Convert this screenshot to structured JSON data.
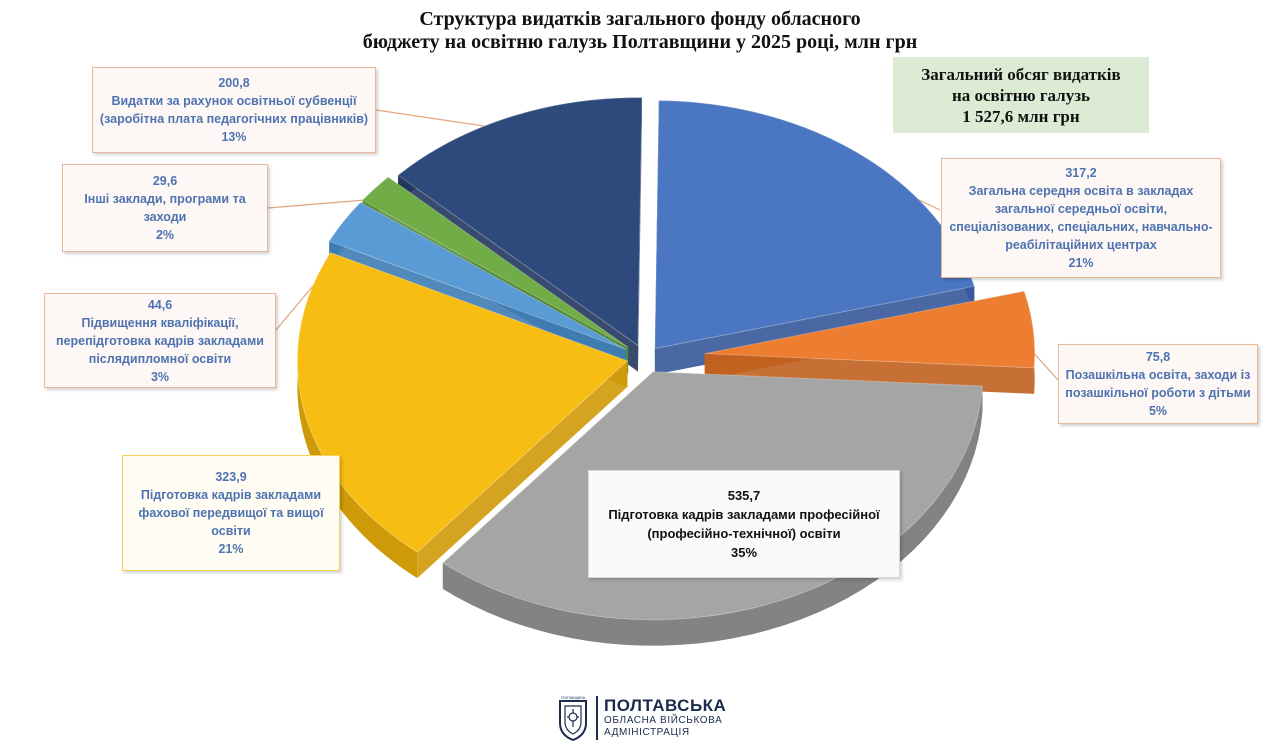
{
  "title_line1": "Структура видатків загального фонду обласного",
  "title_line2": "бюджету на освітню галузь Полтавщини у 2025 році, млн грн",
  "total": {
    "line1": "Загальний обсяг видатків",
    "line2": "на освітню галузь",
    "line3": "1 527,6 млн грн"
  },
  "logo": {
    "line1": "ПОЛТАВСЬКА",
    "line2": "ОБЛАСНА ВІЙСЬКОВА",
    "line3": "АДМІНІСТРАЦІЯ",
    "emblem_text": "ПОЛТАВЩИНА"
  },
  "chart_data": {
    "type": "pie",
    "title": "Структура видатків загального фонду обласного бюджету на освітню галузь Полтавщини у 2025 році, млн грн",
    "unit": "млн грн",
    "total": 1527.6,
    "slices": [
      {
        "value": "317,2",
        "percent": "21%",
        "label_lines": [
          "Загальна середня освіта в закладах",
          "загальної середньої освіти,",
          "спеціалізованих, спеціальних, навчально-",
          "реабілітаційних центрах"
        ],
        "color": "#4a76c2",
        "side": "#36599a"
      },
      {
        "value": "75,8",
        "percent": "5%",
        "label_lines": [
          "Позашкільна освіта, заходи із",
          "позашкільної роботи з дітьми"
        ],
        "color": "#ed7d31",
        "side": "#c1601f"
      },
      {
        "value": "535,7",
        "percent": "35%",
        "label_lines": [
          "Підготовка кадрів закладами професійної",
          "(професійно-технічної) освіти"
        ],
        "color": "#a5a5a5",
        "side": "#838383"
      },
      {
        "value": "323,9",
        "percent": "21%",
        "label_lines": [
          "Підготовка кадрів закладами",
          "фахової передвищої та вищої",
          "освіти"
        ],
        "color": "#f7bd12",
        "side": "#cf9a08"
      },
      {
        "value": "44,6",
        "percent": "3%",
        "label_lines": [
          "Підвищення кваліфікації,",
          "перепідготовка кадрів закладами",
          "післядипломної освіти"
        ],
        "color": "#5b9bd5",
        "side": "#3f7cb4"
      },
      {
        "value": "29,6",
        "percent": "2%",
        "label_lines": [
          "Інші заклади, програми та",
          "заходи"
        ],
        "color": "#70ad47",
        "side": "#538a32"
      },
      {
        "value": "200,8",
        "percent": "13%",
        "label_lines": [
          "Видатки за рахунок освітньої субвенції",
          "(заробітна плата педагогічних працівників)"
        ],
        "color": "#2e4a7d",
        "side": "#22375e"
      }
    ]
  }
}
